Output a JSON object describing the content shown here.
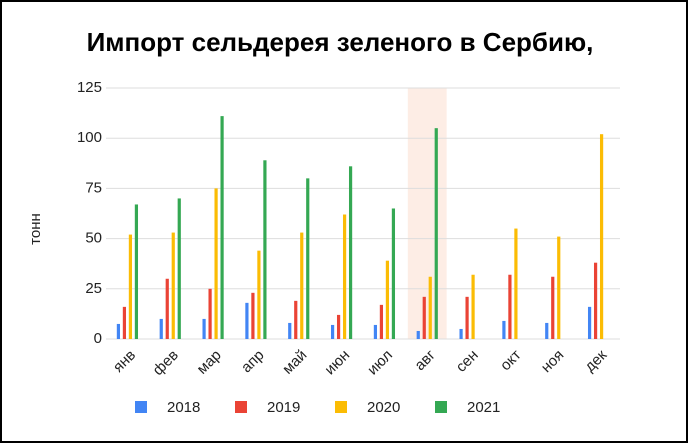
{
  "chart_data": {
    "type": "bar",
    "title": "Импорт сельдерея зеленого в Сербию,",
    "y_label": "тонн",
    "categories": [
      "янв",
      "фев",
      "мар",
      "апр",
      "май",
      "июн",
      "июл",
      "авг",
      "сен",
      "окт",
      "ноя",
      "дек"
    ],
    "series": [
      {
        "name": "2018",
        "color": "#4285f4",
        "values": [
          7.5,
          10,
          10,
          18,
          8,
          7,
          7,
          4,
          5,
          9,
          8,
          16
        ]
      },
      {
        "name": "2019",
        "color": "#ea4335",
        "values": [
          16,
          30,
          25,
          23,
          19,
          12,
          17,
          21,
          21,
          32,
          31,
          38
        ]
      },
      {
        "name": "2020",
        "color": "#fbbc04",
        "values": [
          52,
          53,
          75,
          44,
          53,
          62,
          39,
          31,
          32,
          55,
          51,
          102
        ]
      },
      {
        "name": "2021",
        "color": "#34a853",
        "values": [
          67,
          70,
          111,
          89,
          80,
          86,
          65,
          105,
          null,
          null,
          null,
          null
        ]
      }
    ],
    "highlight": "авг",
    "ylim": [
      0,
      125
    ],
    "yticks": [
      0,
      25,
      50,
      75,
      100,
      125
    ],
    "grid": true,
    "legend": "bottom"
  }
}
